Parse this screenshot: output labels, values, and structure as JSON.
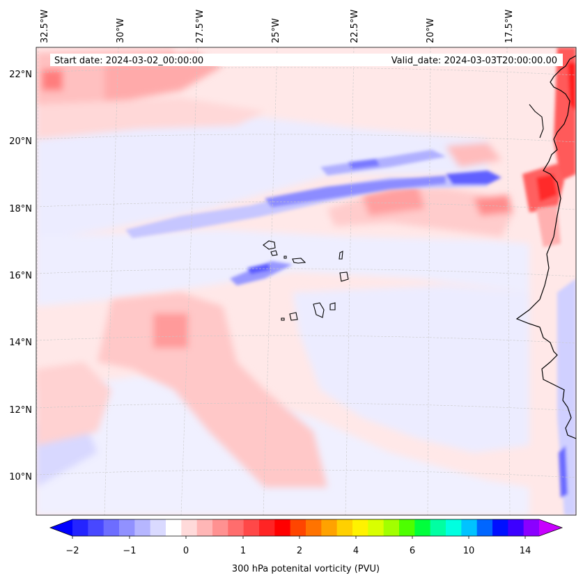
{
  "header": {
    "start_date": "Start date: 2024-03-02_00:00:00",
    "valid_date": "Valid_date: 2024-03-03T20:00:00.00"
  },
  "map": {
    "projection": "Lambert conformal",
    "longitude_labels": [
      "32.5°W",
      "30°W",
      "27.5°W",
      "25°W",
      "22.5°W",
      "20°W",
      "17.5°W"
    ],
    "latitude_labels": [
      "22°N",
      "20°N",
      "18°N",
      "16°N",
      "14°N",
      "12°N",
      "10°N"
    ],
    "gridlines": true,
    "field_name": "300 hPa potential vorticity",
    "features": [
      "west African coastline",
      "Cape Verde islands"
    ]
  },
  "colorbar": {
    "label": "300 hPa potenital vorticity (PVU)",
    "tick_labels": [
      "−2",
      "−1",
      "0",
      "1",
      "2",
      "4",
      "6",
      "10",
      "14"
    ],
    "extend": "both",
    "colors": [
      "#0000ff",
      "#2424ff",
      "#4848ff",
      "#6d6dff",
      "#9191ff",
      "#b6b6ff",
      "#dadaff",
      "#ffffff",
      "#ffdada",
      "#ffb6b6",
      "#ff9191",
      "#ff6d6d",
      "#ff4848",
      "#ff2424",
      "#ff0000",
      "#ff4500",
      "#ff7300",
      "#ffa200",
      "#ffd000",
      "#fff200",
      "#d9ff00",
      "#a2ff00",
      "#4dff00",
      "#00ff3c",
      "#00ffa2",
      "#00ffe0",
      "#00c3ff",
      "#0066ff",
      "#0010ff",
      "#3c00ff",
      "#8a00ff",
      "#c800ff"
    ]
  }
}
